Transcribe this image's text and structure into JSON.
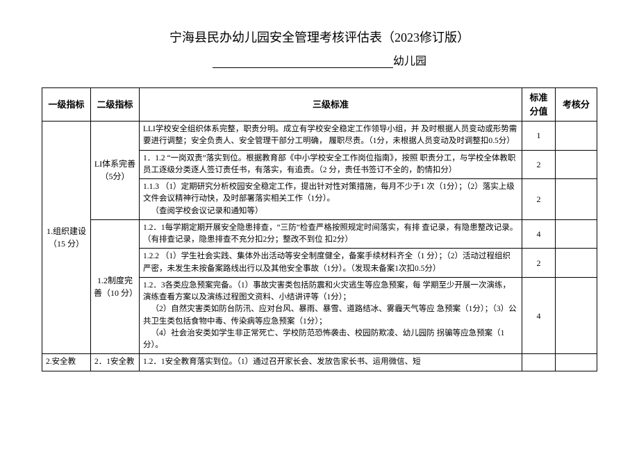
{
  "title": "宁海县民办幼儿园安全管理考核评估表（2023修订版）",
  "subtitle_suffix": "幼儿园",
  "headers": {
    "c1": "一级指标",
    "c2": "二级指标",
    "c3": "三级标准",
    "c4": "标准 分值",
    "c5": "考核分"
  },
  "rows": {
    "l1_a": "1.组织建设（15 分）",
    "l1_b": "2.安全教",
    "l2_a": "LI体系完善（5分）",
    "l2_b": "1.2制度完善（10 分）",
    "l2_c": "2．1安全教",
    "r1": {
      "text": "LLI学校安全组织体系完整，职责分明。成立有学校安全稳定工作领导小组，并 及时根据人员变动或形势需要进行调整；安全负责人、安全管理干部分工明确， 履职尽责。（1分，未根据人员变动及时调整扣0.5分）",
      "score": "1"
    },
    "r2": {
      "text": "1．1.2 “一岗双责”落实到位。根据教育部《中小学校安全工作岗位指南》，按照 职责分工，与学校全体教职员工逐级分类逐人签订责任书，有落实，有追责。（2 分，责任书签订不全的，酌情扣分）",
      "score": "2"
    },
    "r3": {
      "text": "1.1.3 （1）定期研究分析校园安全稳定工作，提出针对性对策措施，每月不少于1 次（1分）；（2）落实上级文件会议精神行动快，及时部署落实相关工作（1分）。",
      "sub": "（查阅学校会议记录和通知等）",
      "score": "2"
    },
    "r4": {
      "text": "1.2．1每学期定期开展安全隐患排查，“三防”检查严格按照规定时间落实，有排 查记录，有隐患整改记录。（有排查记录，隐患排查不充分扣2分；整改不到位 扣2分）",
      "score": "4"
    },
    "r5": {
      "text": "1.2.2 （1）学生社会实践、集体外出活动等安全制度健全，备案手续材料齐全（1 分）；（2）活动过程组织严密，未发生未按备案路线出行以及其他安全事故（1分）。（发现未备案1次扣0.5分）",
      "score": "2"
    },
    "r6": {
      "p1": "1.2．3各类应急预案完备。（1）事故灾害类包括防震和火灾逃生等应急预案，每 学期至少开展一次演练，演练查看方案以及演练过程图文资料、小结讲评等（1分）；",
      "p2": "（2）自然灾害类如防台防汛、应对台风、暴雨、暴雪、道路结冰、雾霾天气等应 急预案（1分）；（3）公共卫生类包括食物中毒、传染病等应急预案（1分）；",
      "p3": "（4）社会治安类如学生非正常死亡、学校防范恐怖袭击、校园防欺凌、幼儿园防 拐骗等应急预案（1分）。",
      "score": "4"
    },
    "r7": {
      "text": "1.2．1安全教育落实到位。（1）通过召开家长会、发放告家长书、运用微信、短"
    }
  },
  "style": {
    "background": "#ffffff",
    "text_color": "#000000",
    "border_color": "#000000",
    "title_fontsize": 18,
    "body_fontsize": 12
  }
}
